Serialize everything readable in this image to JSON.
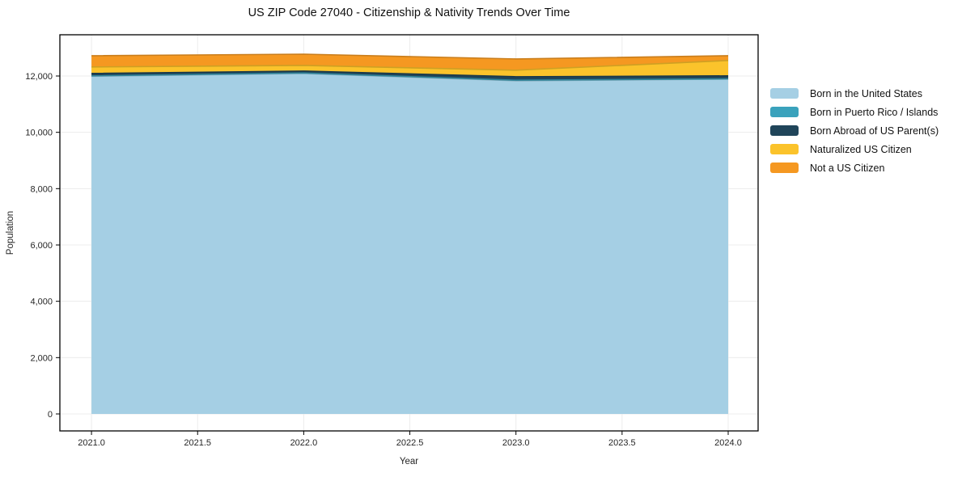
{
  "chart_data": {
    "type": "area",
    "title": "US ZIP Code 27040 - Citizenship & Nativity Trends Over Time",
    "xlabel": "Year",
    "ylabel": "Population",
    "x": [
      2021,
      2022,
      2023,
      2024
    ],
    "series": [
      {
        "name": "Born in the United States",
        "color": "#a5cfe4",
        "values": [
          11990,
          12090,
          11830,
          11890
        ]
      },
      {
        "name": "Born in Puerto Rico / Islands",
        "color": "#3aa2bc",
        "values": [
          15,
          15,
          20,
          10
        ]
      },
      {
        "name": "Born Abroad of US Parent(s)",
        "color": "#20455a",
        "values": [
          85,
          70,
          125,
          105
        ]
      },
      {
        "name": "Naturalized US Citizen",
        "color": "#fbc32b",
        "values": [
          230,
          200,
          230,
          545
        ]
      },
      {
        "name": "Not a US Citizen",
        "color": "#f59821",
        "values": [
          400,
          400,
          400,
          170
        ]
      }
    ],
    "stacked": true,
    "stack_order": "bottom-to-top",
    "xticks": [
      2021,
      2021.5,
      2022,
      2022.5,
      2023,
      2023.5,
      2024
    ],
    "xtick_labels": [
      "2021.0",
      "2021.5",
      "2022.0",
      "2022.5",
      "2023.0",
      "2023.5",
      "2024.0"
    ],
    "yticks": [
      0,
      2000,
      4000,
      6000,
      8000,
      10000,
      12000
    ],
    "ytick_labels": [
      "0",
      "2,000",
      "4,000",
      "6,000",
      "8,000",
      "10,000",
      "12,000"
    ],
    "xlim": [
      2020.851,
      2024.141
    ],
    "ylim": [
      -603,
      13464
    ],
    "grid": true,
    "legend_position": "outside-right",
    "colors": {
      "grid": "#ececec",
      "frame": "#000000",
      "tick_text": "#262626",
      "background": "#ffffff"
    }
  }
}
